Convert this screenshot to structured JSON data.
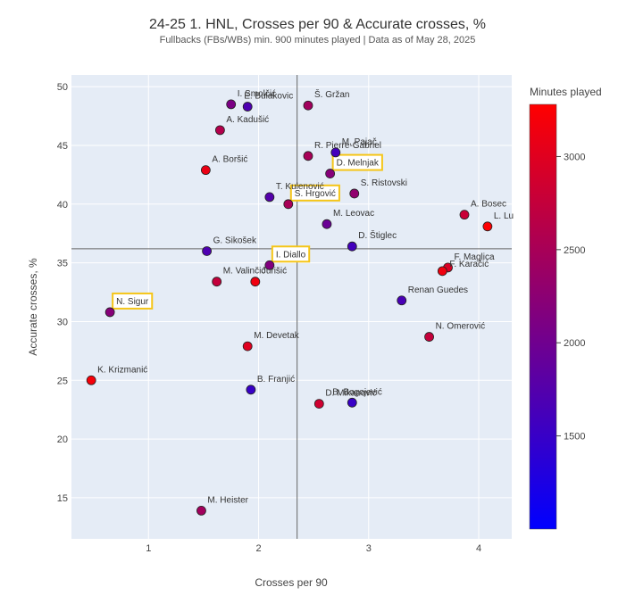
{
  "chart_data": {
    "type": "scatter",
    "title": "24-25 1. HNL, Crosses per 90 & Accurate crosses, %",
    "subtitle": "Fullbacks (FBs/WBs) min. 900 minutes played | Data as of May 28, 2025",
    "xlabel": "Crosses per 90",
    "ylabel": "Accurate crosses, %",
    "xlim": [
      0.3,
      4.3
    ],
    "ylim": [
      11.5,
      51
    ],
    "xticks": [
      1,
      2,
      3,
      4
    ],
    "yticks": [
      15,
      20,
      25,
      30,
      35,
      40,
      45,
      50
    ],
    "reference_lines": {
      "x": 2.35,
      "y": 36.2
    },
    "colorbar": {
      "title": "Minutes played",
      "range": [
        1000,
        3280
      ],
      "ticks": [
        1500,
        2000,
        2500,
        3000
      ],
      "low_color": "#0000ff",
      "high_color": "#ff0000"
    },
    "highlighted": [
      "D. Melnjak",
      "S. Hrgović",
      "I. Diallo",
      "N. Sigur"
    ],
    "highlight_color": "#f5c518",
    "grid": true,
    "legend": "none",
    "points": [
      {
        "name": "I. Smolčić",
        "x": 1.75,
        "y": 48.5,
        "minutes": 2100
      },
      {
        "name": "E. Bulakovic",
        "x": 1.9,
        "y": 48.3,
        "minutes": 1700
      },
      {
        "name": "Š. Gržan",
        "x": 2.45,
        "y": 48.4,
        "minutes": 2450
      },
      {
        "name": "A. Kadušić",
        "x": 1.65,
        "y": 46.3,
        "minutes": 2600
      },
      {
        "name": "M. Pajač",
        "x": 2.7,
        "y": 44.4,
        "minutes": 1600
      },
      {
        "name": "R. Pierre-Gabriel",
        "x": 2.45,
        "y": 44.1,
        "minutes": 2500
      },
      {
        "name": "A. Boršić",
        "x": 1.52,
        "y": 42.9,
        "minutes": 3100
      },
      {
        "name": "D. Melnjak",
        "x": 2.65,
        "y": 42.6,
        "minutes": 2200
      },
      {
        "name": "T. Kulenović",
        "x": 2.1,
        "y": 40.6,
        "minutes": 1750
      },
      {
        "name": "S. Hrgović",
        "x": 2.27,
        "y": 40.0,
        "minutes": 2500
      },
      {
        "name": "S. Ristovski",
        "x": 2.87,
        "y": 40.9,
        "minutes": 2300
      },
      {
        "name": "A. Bosec",
        "x": 3.87,
        "y": 39.1,
        "minutes": 2800
      },
      {
        "name": "L. Lu",
        "x": 4.08,
        "y": 38.1,
        "minutes": 3250
      },
      {
        "name": "M. Leovac",
        "x": 2.62,
        "y": 38.3,
        "minutes": 1950
      },
      {
        "name": "G. Sikošek",
        "x": 1.53,
        "y": 36.0,
        "minutes": 1700
      },
      {
        "name": "D. Štiglec",
        "x": 2.85,
        "y": 36.4,
        "minutes": 1600
      },
      {
        "name": "I. Diallo",
        "x": 2.1,
        "y": 34.8,
        "minutes": 2150
      },
      {
        "name": "M. Valinčić",
        "x": 1.62,
        "y": 33.4,
        "minutes": 2750
      },
      {
        "name": "Jurišić",
        "x": 1.97,
        "y": 33.4,
        "minutes": 3150
      },
      {
        "name": "F. Maglica",
        "x": 3.72,
        "y": 34.6,
        "minutes": 2950
      },
      {
        "name": "F. Karačić",
        "x": 3.67,
        "y": 34.3,
        "minutes": 3150
      },
      {
        "name": "Renan Guedes",
        "x": 3.3,
        "y": 31.8,
        "minutes": 1650
      },
      {
        "name": "N. Sigur",
        "x": 0.65,
        "y": 30.8,
        "minutes": 2200
      },
      {
        "name": "N. Omerović",
        "x": 3.55,
        "y": 28.7,
        "minutes": 2750
      },
      {
        "name": "M. Devetak",
        "x": 1.9,
        "y": 27.9,
        "minutes": 3000
      },
      {
        "name": "K. Krizmanić",
        "x": 0.48,
        "y": 25.0,
        "minutes": 3200
      },
      {
        "name": "B. Franjić",
        "x": 1.93,
        "y": 24.2,
        "minutes": 1500
      },
      {
        "name": "D. Mikanović",
        "x": 2.55,
        "y": 23.0,
        "minutes": 2850
      },
      {
        "name": "B. Bogojević",
        "x": 2.85,
        "y": 23.1,
        "minutes": 1500
      },
      {
        "name": "M. Heister",
        "x": 1.48,
        "y": 13.9,
        "minutes": 2450
      }
    ]
  }
}
